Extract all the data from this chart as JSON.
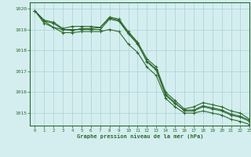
{
  "title": "Graphe pression niveau de la mer (hPa)",
  "bg_color": "#d4eef0",
  "grid_color": "#aad0d4",
  "line_color": "#2d6a2d",
  "xlim": [
    -0.5,
    23
  ],
  "ylim": [
    1014.4,
    1020.3
  ],
  "yticks": [
    1015,
    1016,
    1017,
    1018,
    1019,
    1020
  ],
  "xticks": [
    0,
    1,
    2,
    3,
    4,
    5,
    6,
    7,
    8,
    9,
    10,
    11,
    12,
    13,
    14,
    15,
    16,
    17,
    18,
    19,
    20,
    21,
    22,
    23
  ],
  "series": [
    [
      1019.9,
      1019.4,
      1019.3,
      1019.0,
      1019.0,
      1019.0,
      1019.0,
      1019.0,
      1019.5,
      1019.4,
      1018.8,
      1018.3,
      1017.5,
      1017.1,
      1015.9,
      1015.5,
      1015.1,
      1015.1,
      1015.3,
      1015.2,
      1015.1,
      1014.9,
      1014.8,
      1014.6
    ],
    [
      1019.9,
      1019.4,
      1019.1,
      1019.0,
      1018.95,
      1019.05,
      1019.05,
      1019.1,
      1019.55,
      1019.45,
      1018.85,
      1018.35,
      1017.45,
      1017.05,
      1015.85,
      1015.45,
      1015.15,
      1015.15,
      1015.35,
      1015.25,
      1015.15,
      1014.95,
      1014.85,
      1014.65
    ],
    [
      1019.9,
      1019.3,
      1019.1,
      1018.85,
      1018.85,
      1018.9,
      1018.9,
      1018.9,
      1019.0,
      1018.9,
      1018.3,
      1017.9,
      1017.2,
      1016.8,
      1015.7,
      1015.3,
      1015.0,
      1015.0,
      1015.1,
      1015.0,
      1014.9,
      1014.7,
      1014.6,
      1014.45
    ],
    [
      1019.9,
      1019.45,
      1019.35,
      1019.05,
      1019.15,
      1019.15,
      1019.15,
      1019.1,
      1019.6,
      1019.5,
      1018.9,
      1018.4,
      1017.6,
      1017.2,
      1016.0,
      1015.6,
      1015.2,
      1015.3,
      1015.5,
      1015.4,
      1015.3,
      1015.1,
      1015.0,
      1014.7
    ]
  ]
}
